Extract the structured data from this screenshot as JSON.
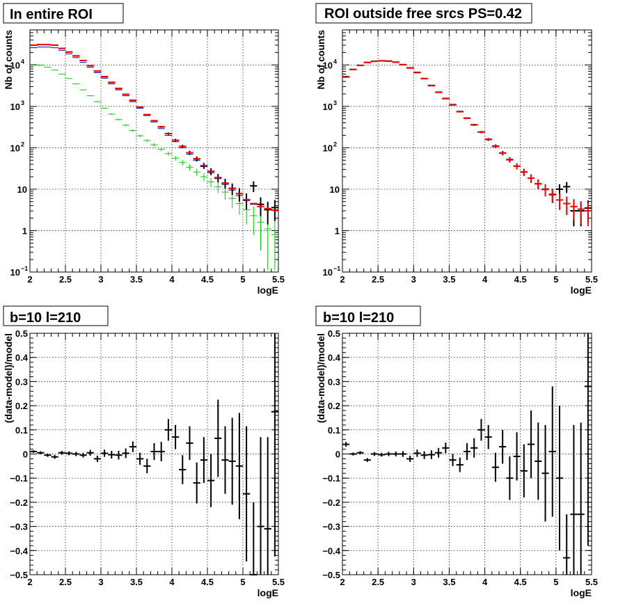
{
  "chart_data": [
    {
      "type": "scatter",
      "title": "In entire ROI",
      "xlabel": "logE",
      "ylabel": "Nb of counts",
      "xlim": [
        2,
        5.5
      ],
      "ylim": [
        0.1,
        70000
      ],
      "yscale": "log",
      "grid": true,
      "x_ticks": [
        "2",
        "2.5",
        "3",
        "3.5",
        "4",
        "4.5",
        "5",
        "5.5"
      ],
      "y_ticks": [
        {
          "value": 0.1,
          "base": "10",
          "exp": "−1"
        },
        {
          "value": 1,
          "base": "1",
          "exp": ""
        },
        {
          "value": 10,
          "base": "10",
          "exp": ""
        },
        {
          "value": 100,
          "base": "10",
          "exp": "2"
        },
        {
          "value": 1000,
          "base": "10",
          "exp": "3"
        },
        {
          "value": 10000,
          "base": "10",
          "exp": "4"
        }
      ],
      "series": [
        {
          "color": "#00cc00",
          "style": "errorbar",
          "x": [
            2.05,
            2.15,
            2.25,
            2.35,
            2.45,
            2.55,
            2.65,
            2.75,
            2.85,
            2.95,
            3.05,
            3.15,
            3.25,
            3.35,
            3.45,
            3.55,
            3.65,
            3.75,
            3.85,
            3.95,
            4.05,
            4.15,
            4.25,
            4.35,
            4.45,
            4.55,
            4.65,
            4.75,
            4.85,
            4.95,
            5.05,
            5.15,
            5.25,
            5.35,
            5.45
          ],
          "y": [
            10200,
            9800,
            8800,
            7500,
            6000,
            4700,
            3500,
            2500,
            1800,
            1300,
            900,
            650,
            480,
            350,
            260,
            195,
            150,
            118,
            92,
            72,
            56,
            44,
            34,
            26,
            20,
            15,
            11.5,
            8.5,
            6,
            4.5,
            3.2,
            2.3,
            1.6,
            1.1,
            0.8
          ]
        },
        {
          "color": "#0000cc",
          "style": "line",
          "x": [
            2.05,
            2.15,
            2.25,
            2.35,
            2.45,
            2.55,
            2.65,
            2.75,
            2.85,
            2.95,
            3.05,
            3.15,
            3.25,
            3.35,
            3.45,
            3.55,
            3.65,
            3.75,
            3.85,
            3.95,
            4.05,
            4.15,
            4.25,
            4.35,
            4.45,
            4.55,
            4.65,
            4.75,
            4.85,
            4.95,
            5.05,
            5.15,
            5.25,
            5.35,
            5.45
          ],
          "y": [
            26000,
            27000,
            27000,
            26000,
            22500,
            18500,
            15000,
            11500,
            8800,
            6500,
            4800,
            3500,
            2500,
            1800,
            1300,
            900,
            600,
            420,
            290,
            200,
            140,
            100,
            70,
            50,
            35,
            25,
            18,
            13,
            9.5,
            7,
            5.3,
            4.3,
            3.8,
            3.4,
            3.2
          ]
        },
        {
          "color": "#000000",
          "style": "errorbar",
          "x": [
            2.05,
            2.15,
            2.25,
            2.35,
            2.45,
            2.55,
            2.65,
            2.75,
            2.85,
            2.95,
            3.05,
            3.15,
            3.25,
            3.35,
            3.45,
            3.55,
            3.65,
            3.75,
            3.85,
            3.95,
            4.05,
            4.15,
            4.25,
            4.35,
            4.45,
            4.55,
            4.65,
            4.75,
            4.85,
            4.95,
            5.05,
            5.15,
            5.25,
            5.35,
            5.45
          ],
          "y": [
            30000,
            31000,
            31000,
            30000,
            25000,
            20500,
            16500,
            12800,
            9600,
            7100,
            5200,
            3800,
            2700,
            1950,
            1400,
            960,
            630,
            450,
            320,
            220,
            152,
            108,
            76,
            54,
            37,
            27,
            19,
            14,
            10.5,
            7.8,
            5.6,
            12,
            4.3,
            3.2,
            3.6
          ]
        },
        {
          "color": "#ff0000",
          "style": "line",
          "x": [
            2.05,
            2.15,
            2.25,
            2.35,
            2.45,
            2.55,
            2.65,
            2.75,
            2.85,
            2.95,
            3.05,
            3.15,
            3.25,
            3.35,
            3.45,
            3.55,
            3.65,
            3.75,
            3.85,
            3.95,
            4.05,
            4.15,
            4.25,
            4.35,
            4.45,
            4.55,
            4.65,
            4.75,
            4.85,
            4.95,
            5.05,
            5.15,
            5.25,
            5.35,
            5.45
          ],
          "y": [
            30000,
            31000,
            31000,
            30000,
            25000,
            20500,
            16500,
            12800,
            9600,
            7100,
            5200,
            3800,
            2700,
            1950,
            1400,
            960,
            630,
            450,
            320,
            220,
            152,
            108,
            76,
            54,
            37,
            27,
            19,
            14,
            10.5,
            7.8,
            5.6,
            4.5,
            3.8,
            3.4,
            3.1
          ]
        }
      ]
    },
    {
      "type": "scatter",
      "title": "ROI outside free srcs PS=0.42",
      "xlabel": "logE",
      "ylabel": "Nb of counts",
      "xlim": [
        2,
        5.5
      ],
      "ylim": [
        0.1,
        70000
      ],
      "yscale": "log",
      "grid": true,
      "x_ticks": [
        "2",
        "2.5",
        "3",
        "3.5",
        "4",
        "4.5",
        "5",
        "5.5"
      ],
      "y_ticks": [
        {
          "value": 0.1,
          "base": "10",
          "exp": "−1"
        },
        {
          "value": 1,
          "base": "1",
          "exp": ""
        },
        {
          "value": 10,
          "base": "10",
          "exp": ""
        },
        {
          "value": 100,
          "base": "10",
          "exp": "2"
        },
        {
          "value": 1000,
          "base": "10",
          "exp": "3"
        },
        {
          "value": 10000,
          "base": "10",
          "exp": "4"
        }
      ],
      "series": [
        {
          "color": "#000000",
          "style": "errorbar",
          "x": [
            2.05,
            2.15,
            2.25,
            2.35,
            2.45,
            2.55,
            2.65,
            2.75,
            2.85,
            2.95,
            3.05,
            3.15,
            3.25,
            3.35,
            3.45,
            3.55,
            3.65,
            3.75,
            3.85,
            3.95,
            4.05,
            4.15,
            4.25,
            4.35,
            4.45,
            4.55,
            4.65,
            4.75,
            4.85,
            4.95,
            5.05,
            5.15,
            5.25,
            5.35,
            5.45
          ],
          "y": [
            5200,
            7800,
            9800,
            11500,
            12300,
            12600,
            12400,
            11700,
            10200,
            8500,
            6600,
            4700,
            3200,
            2200,
            1550,
            1100,
            750,
            520,
            360,
            240,
            160,
            110,
            75,
            52,
            36,
            26,
            18.5,
            13.5,
            10,
            7.5,
            10,
            11.5,
            3,
            3,
            3.5
          ]
        },
        {
          "color": "#ff0000",
          "style": "errorbar",
          "x": [
            2.05,
            2.15,
            2.25,
            2.35,
            2.45,
            2.55,
            2.65,
            2.75,
            2.85,
            2.95,
            3.05,
            3.15,
            3.25,
            3.35,
            3.45,
            3.55,
            3.65,
            3.75,
            3.85,
            3.95,
            4.05,
            4.15,
            4.25,
            4.35,
            4.45,
            4.55,
            4.65,
            4.75,
            4.85,
            4.95,
            5.05,
            5.15,
            5.25,
            5.35,
            5.45
          ],
          "y": [
            5100,
            7700,
            9700,
            11400,
            12200,
            12500,
            12300,
            11600,
            10100,
            8400,
            6500,
            4650,
            3150,
            2180,
            1530,
            1080,
            740,
            515,
            355,
            238,
            158,
            108,
            74,
            51,
            36,
            26,
            18.5,
            13.5,
            9.8,
            7.3,
            5.5,
            4.5,
            3.8,
            3.3,
            3.0
          ]
        }
      ]
    },
    {
      "type": "scatter",
      "title": "b=10 l=210",
      "xlabel": "logE",
      "ylabel": "(data-model)/model",
      "xlim": [
        2,
        5.5
      ],
      "ylim": [
        -0.5,
        0.5
      ],
      "grid": true,
      "x_ticks": [
        "2",
        "2.5",
        "3",
        "3.5",
        "4",
        "4.5",
        "5",
        "5.5"
      ],
      "y_ticks": [
        "−0.5",
        "−0.4",
        "−0.3",
        "−0.2",
        "−0.1",
        "0",
        "0.1",
        "0.2",
        "0.3",
        "0.4",
        "0.5"
      ],
      "series": [
        {
          "color": "#000000",
          "style": "errorbar",
          "x": [
            2.05,
            2.15,
            2.25,
            2.35,
            2.45,
            2.55,
            2.65,
            2.75,
            2.85,
            2.95,
            3.05,
            3.15,
            3.25,
            3.35,
            3.45,
            3.55,
            3.65,
            3.75,
            3.85,
            3.95,
            4.05,
            4.15,
            4.25,
            4.35,
            4.45,
            4.55,
            4.65,
            4.75,
            4.85,
            4.95,
            5.05,
            5.15,
            5.25,
            5.35,
            5.45
          ],
          "y": [
            0.01,
            0.005,
            -0.005,
            -0.012,
            0.005,
            0.003,
            0.0,
            -0.005,
            0.005,
            -0.02,
            0.003,
            -0.003,
            -0.005,
            0.003,
            0.03,
            -0.02,
            -0.05,
            0.01,
            0.01,
            0.1,
            0.07,
            -0.065,
            0.045,
            -0.12,
            -0.025,
            -0.11,
            0.065,
            -0.025,
            -0.03,
            -0.05,
            -0.165,
            -0.5,
            -0.3,
            -0.31,
            0.175
          ],
          "err": [
            0.005,
            0.006,
            0.007,
            0.008,
            0.008,
            0.008,
            0.009,
            0.01,
            0.012,
            0.013,
            0.015,
            0.016,
            0.018,
            0.02,
            0.022,
            0.025,
            0.03,
            0.035,
            0.04,
            0.045,
            0.05,
            0.06,
            0.07,
            0.085,
            0.095,
            0.11,
            0.16,
            0.14,
            0.18,
            0.22,
            0.28,
            0.3,
            0.37,
            0.38,
            0.6
          ]
        }
      ]
    },
    {
      "type": "scatter",
      "title": "b=10 l=210",
      "xlabel": "logE",
      "ylabel": "(data-model)/model",
      "xlim": [
        2,
        5.5
      ],
      "ylim": [
        -0.5,
        0.5
      ],
      "grid": true,
      "x_ticks": [
        "2",
        "2.5",
        "3",
        "3.5",
        "4",
        "4.5",
        "5",
        "5.5"
      ],
      "y_ticks": [
        "−0.5",
        "−0.4",
        "−0.3",
        "−0.2",
        "−0.1",
        "0",
        "0.1",
        "0.2",
        "0.3",
        "0.4",
        "0.5"
      ],
      "series": [
        {
          "color": "#000000",
          "style": "errorbar",
          "x": [
            2.05,
            2.15,
            2.25,
            2.35,
            2.45,
            2.55,
            2.65,
            2.75,
            2.85,
            2.95,
            3.05,
            3.15,
            3.25,
            3.35,
            3.45,
            3.55,
            3.65,
            3.75,
            3.85,
            3.95,
            4.05,
            4.15,
            4.25,
            4.35,
            4.45,
            4.55,
            4.65,
            4.75,
            4.85,
            4.95,
            5.05,
            5.15,
            5.25,
            5.35,
            5.45
          ],
          "y": [
            0.04,
            0.0,
            0.005,
            -0.025,
            0.0,
            -0.003,
            0.0,
            0.0,
            0.0,
            -0.02,
            0.003,
            -0.005,
            -0.003,
            0.005,
            0.025,
            -0.025,
            -0.045,
            0.01,
            0.025,
            0.1,
            0.07,
            -0.055,
            0.03,
            -0.1,
            -0.01,
            -0.07,
            0.04,
            -0.03,
            -0.08,
            0.01,
            -0.1,
            -0.43,
            -0.25,
            -0.25,
            0.28
          ],
          "err": [
            0.01,
            0.006,
            0.007,
            0.008,
            0.008,
            0.008,
            0.009,
            0.01,
            0.012,
            0.013,
            0.015,
            0.016,
            0.018,
            0.02,
            0.022,
            0.025,
            0.03,
            0.035,
            0.04,
            0.045,
            0.05,
            0.06,
            0.07,
            0.09,
            0.1,
            0.11,
            0.14,
            0.16,
            0.2,
            0.27,
            0.3,
            0.18,
            0.37,
            0.38,
            0.66
          ]
        }
      ]
    }
  ]
}
